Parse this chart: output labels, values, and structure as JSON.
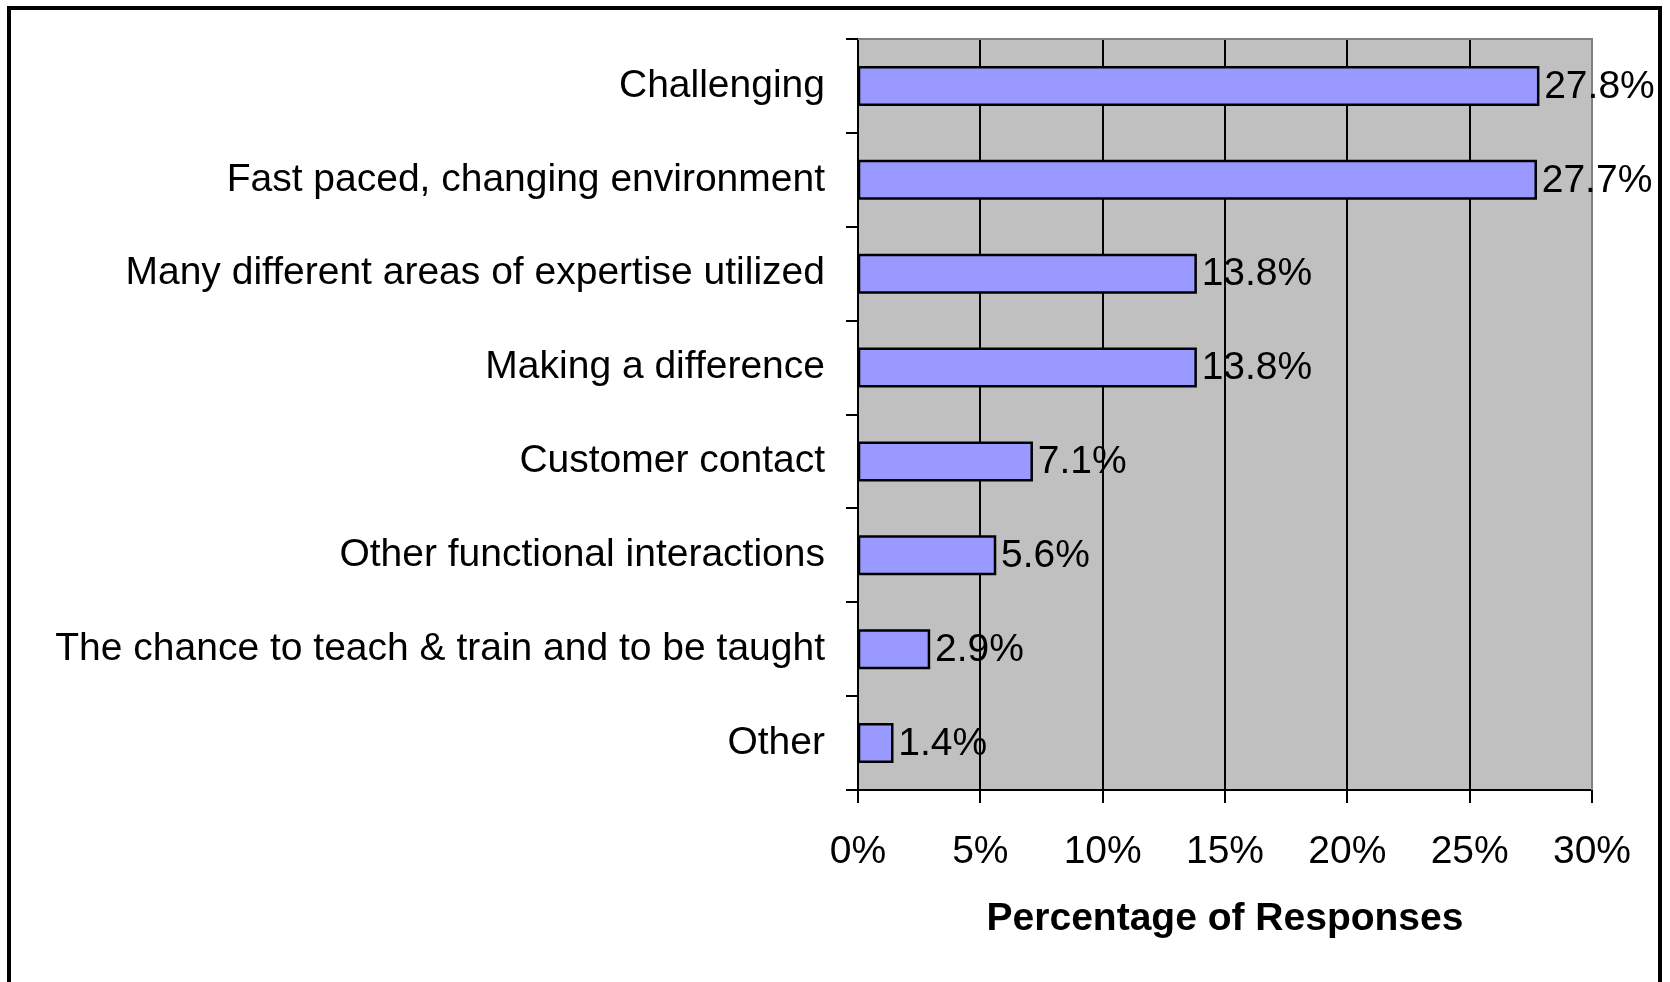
{
  "chart_data": {
    "type": "bar",
    "orientation": "horizontal",
    "categories": [
      "Challenging",
      "Fast paced, changing environment",
      "Many different areas of expertise utilized",
      "Making a difference",
      "Customer contact",
      "Other functional interactions",
      "The chance to teach & train and to be taught",
      "Other"
    ],
    "values": [
      27.8,
      27.7,
      13.8,
      13.8,
      7.1,
      5.6,
      2.9,
      1.4
    ],
    "color": "#9999ff",
    "value_labels": [
      "27.8%",
      "27.7%",
      "13.8%",
      "13.8%",
      "7.1%",
      "5.6%",
      "2.9%",
      "1.4%"
    ],
    "xlabel": "Percentage of Responses",
    "xlim": [
      0,
      30
    ],
    "xticks": [
      {
        "value": 0,
        "label": "0%"
      },
      {
        "value": 5,
        "label": "5%"
      },
      {
        "value": 10,
        "label": "10%"
      },
      {
        "value": 15,
        "label": "15%"
      },
      {
        "value": 20,
        "label": "20%"
      },
      {
        "value": 25,
        "label": "25%"
      },
      {
        "value": 30,
        "label": "30%"
      }
    ],
    "grid": "x"
  }
}
